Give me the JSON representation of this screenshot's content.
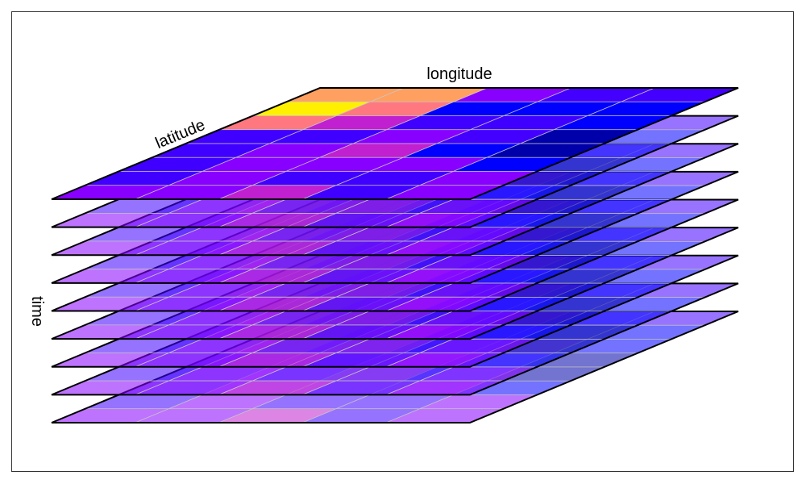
{
  "labels": {
    "x_axis": "longitude",
    "y_axis": "latitude",
    "z_axis": "time"
  },
  "layer_count": 9,
  "grid": {
    "rows": 8,
    "cols": 5
  },
  "top_layer_colors": [
    [
      "#FFA060",
      "#FFA060",
      "#8800FF",
      "#4400FF",
      "#4400FF"
    ],
    [
      "#FFF000",
      "#FF7880",
      "#0000FF",
      "#0000FF",
      "#0000FF"
    ],
    [
      "#FF7880",
      "#C020D0",
      "#4000FF",
      "#4000FF",
      "#0000FF"
    ],
    [
      "#4000FF",
      "#4000FF",
      "#8800FF",
      "#4400FF",
      "#0000AA"
    ],
    [
      "#4000FF",
      "#8800FF",
      "#C020D0",
      "#0000FF",
      "#0000AA"
    ],
    [
      "#4000FF",
      "#8800FF",
      "#8800FF",
      "#8800FF",
      "#0000FF"
    ],
    [
      "#4000FF",
      "#8800FF",
      "#4000FF",
      "#4000FF",
      "#8800FF"
    ],
    [
      "#8800FF",
      "#8800FF",
      "#C020D0",
      "#4000FF",
      "#8800FF"
    ]
  ],
  "lower_layer_opacity": 0.55,
  "grid_line_color": "#C8C8C8"
}
